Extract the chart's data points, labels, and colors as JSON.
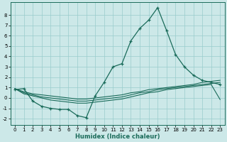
{
  "xlabel": "Humidex (Indice chaleur)",
  "bg_color": "#cce8e8",
  "grid_color": "#99cccc",
  "line_color": "#1a6b5a",
  "x_ticks": [
    0,
    1,
    2,
    3,
    4,
    5,
    6,
    7,
    8,
    9,
    10,
    11,
    12,
    13,
    14,
    15,
    16,
    17,
    18,
    19,
    20,
    21,
    22,
    23
  ],
  "y_ticks": [
    -2,
    -1,
    0,
    1,
    2,
    3,
    4,
    5,
    6,
    7,
    8
  ],
  "ylim": [
    -2.6,
    9.2
  ],
  "xlim": [
    -0.5,
    23.5
  ],
  "main_line": [
    0.8,
    0.9,
    -0.3,
    -0.8,
    -1.0,
    -1.1,
    -1.1,
    -1.7,
    -1.9,
    0.2,
    1.5,
    3.0,
    3.3,
    5.5,
    6.7,
    7.5,
    8.7,
    6.5,
    4.2,
    3.0,
    2.2,
    1.7,
    1.5,
    1.3
  ],
  "env_line1": [
    0.9,
    0.6,
    0.4,
    0.3,
    0.2,
    0.1,
    0.0,
    -0.1,
    -0.1,
    0.0,
    0.1,
    0.2,
    0.3,
    0.5,
    0.6,
    0.8,
    0.9,
    1.0,
    1.1,
    1.2,
    1.3,
    1.5,
    1.6,
    1.7
  ],
  "env_line2": [
    0.9,
    0.5,
    0.3,
    0.1,
    0.0,
    -0.1,
    -0.2,
    -0.3,
    -0.3,
    -0.2,
    -0.1,
    0.0,
    0.1,
    0.3,
    0.5,
    0.6,
    0.8,
    0.9,
    1.0,
    1.1,
    1.2,
    1.3,
    1.4,
    1.5
  ],
  "env_line3": [
    0.9,
    0.4,
    0.2,
    0.0,
    -0.2,
    -0.3,
    -0.4,
    -0.5,
    -0.5,
    -0.4,
    -0.3,
    -0.2,
    -0.1,
    0.1,
    0.3,
    0.5,
    0.6,
    0.8,
    0.9,
    1.0,
    1.1,
    1.2,
    1.3,
    -0.15
  ]
}
